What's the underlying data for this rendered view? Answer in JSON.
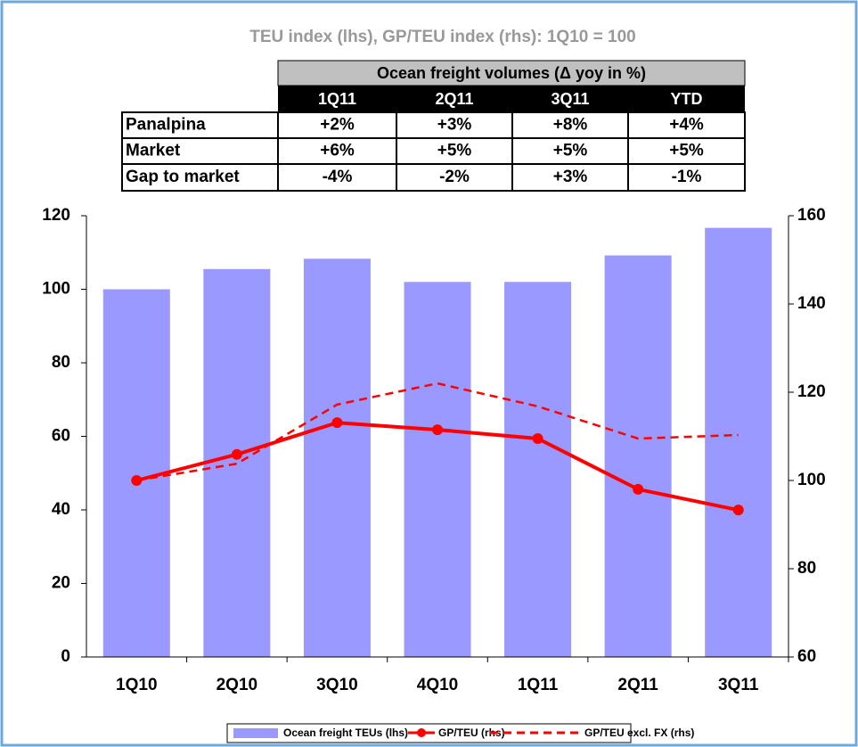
{
  "chart_data": {
    "type": "bar-line",
    "title": "TEU index (lhs), GP/TEU index (rhs): 1Q10 = 100",
    "categories": [
      "1Q10",
      "2Q10",
      "3Q10",
      "4Q10",
      "1Q11",
      "2Q11",
      "3Q11"
    ],
    "series": [
      {
        "name": "Ocean freight TEUs (lhs)",
        "color": "#9999ff",
        "kind": "bar",
        "values": [
          100,
          105.5,
          108.3,
          102,
          102,
          109.2,
          116.7
        ]
      },
      {
        "name": "GP/TEU (rhs)",
        "color": "#ff0000",
        "kind": "line",
        "axis": "y2",
        "values": [
          100,
          105.9,
          113.1,
          111.5,
          109.5,
          98,
          93.3
        ]
      },
      {
        "name": "GP/TEU excl. FX (rhs)",
        "color": "#ff0000",
        "kind": "dashed",
        "axis": "y2",
        "values": [
          100,
          103.8,
          117.2,
          122,
          116.8,
          109.5,
          110.3
        ]
      }
    ],
    "ylim": [
      0,
      120
    ],
    "yticks": [
      0,
      20,
      40,
      60,
      80,
      100,
      120
    ],
    "y2lim": [
      60,
      160
    ],
    "y2ticks": [
      60,
      80,
      100,
      120,
      140,
      160
    ],
    "legend": "bottom"
  },
  "table": {
    "title": "Ocean freight volumes (Δ yoy in %)",
    "columns": [
      "1Q11",
      "2Q11",
      "3Q11",
      "YTD"
    ],
    "rows": [
      [
        "Panalpina",
        "+2%",
        "+3%",
        "+8%",
        "+4%"
      ],
      [
        "Market",
        "+6%",
        "+5%",
        "+5%",
        "+5%"
      ],
      [
        "Gap to market",
        "-4%",
        "-2%",
        "+3%",
        "-1%"
      ]
    ]
  }
}
